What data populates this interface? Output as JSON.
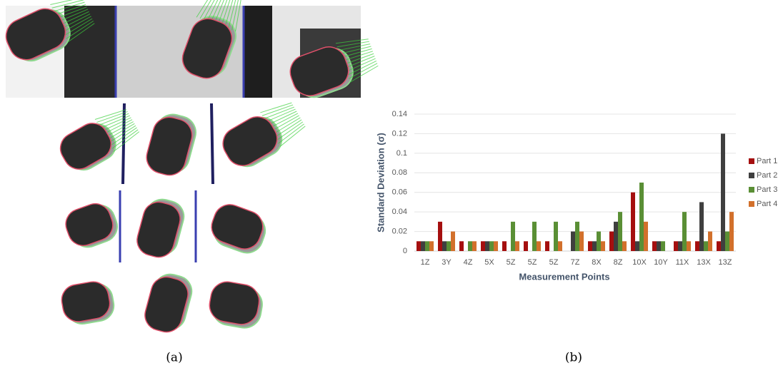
{
  "chart_data": {
    "type": "bar",
    "x_label": "Measurement Points",
    "y_label": "Standard Deviation (σ)",
    "categories": [
      "1Z",
      "3Y",
      "4Z",
      "5X",
      "5Z",
      "5Z",
      "5Z",
      "7Z",
      "8X",
      "8Z",
      "10X",
      "10Y",
      "11X",
      "13X",
      "13Z"
    ],
    "series": [
      {
        "name": "Part 1",
        "color": "#a50f0f",
        "values": [
          0.01,
          0.03,
          0.01,
          0.01,
          0.01,
          0.01,
          0.01,
          0,
          0.01,
          0.02,
          0.06,
          0.01,
          0.01,
          0.01,
          0.01
        ]
      },
      {
        "name": "Part 2",
        "color": "#3f3f3f",
        "values": [
          0.01,
          0.01,
          0,
          0.01,
          0,
          0,
          0,
          0.02,
          0.01,
          0.03,
          0.01,
          0.01,
          0.01,
          0.05,
          0.12
        ]
      },
      {
        "name": "Part 3",
        "color": "#5a8f35",
        "values": [
          0.01,
          0.01,
          0.01,
          0.01,
          0.03,
          0.03,
          0.03,
          0.03,
          0.02,
          0.04,
          0.07,
          0.01,
          0.04,
          0.01,
          0.02
        ]
      },
      {
        "name": "Part 4",
        "color": "#d2702b",
        "values": [
          0.01,
          0.02,
          0.01,
          0.01,
          0.01,
          0.01,
          0.01,
          0.02,
          0.01,
          0.01,
          0.03,
          0,
          0.01,
          0.02,
          0.04
        ]
      }
    ],
    "ylim": [
      0,
      0.14
    ],
    "yticks": [
      0,
      0.02,
      0.04,
      0.06,
      0.08,
      0.1,
      0.12,
      0.14
    ],
    "grid": true,
    "legend": "right"
  },
  "panel_labels": [
    "(a)",
    "(b)"
  ]
}
